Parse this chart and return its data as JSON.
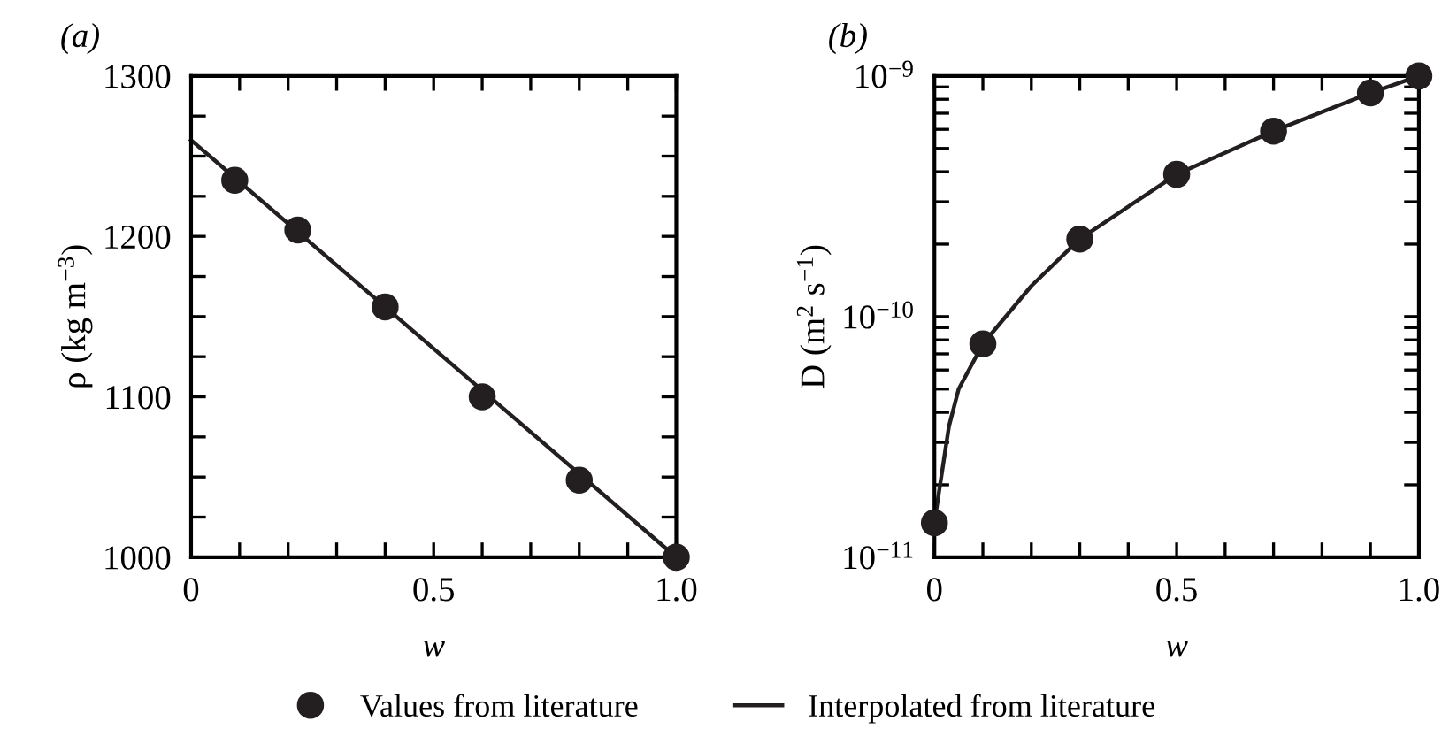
{
  "chart_data": [
    {
      "type": "scatter",
      "title": "(a)",
      "xlabel": "w",
      "ylabel": "ρ (kg m$^{−3}$)",
      "legend": "bottom",
      "xlim": [
        0,
        1.0
      ],
      "xticks": [
        0,
        {
          "value": 0.1,
          "label": null
        },
        {
          "value": 0.2,
          "label": null
        },
        {
          "value": 0.3,
          "label": null
        },
        {
          "value": 0.4,
          "label": null
        },
        0.5,
        {
          "value": 0.6,
          "label": null
        },
        {
          "value": 0.7,
          "label": null
        },
        {
          "value": 0.8,
          "label": null
        },
        {
          "value": 0.9,
          "label": null
        },
        {
          "value": 1.0,
          "label": "1.0"
        }
      ],
      "ylim": [
        1000,
        1300
      ],
      "yticks": [
        1000,
        {
          "value": 1025,
          "label": null
        },
        {
          "value": 1050,
          "label": null
        },
        {
          "value": 1075,
          "label": null
        },
        1100,
        {
          "value": 1125,
          "label": null
        },
        {
          "value": 1150,
          "label": null
        },
        {
          "value": 1175,
          "label": null
        },
        1200,
        {
          "value": 1225,
          "label": null
        },
        {
          "value": 1250,
          "label": null
        },
        {
          "value": 1275,
          "label": null
        },
        1300
      ],
      "series": [
        {
          "name": "Values from literature",
          "marker": "circle",
          "color": "#231f20",
          "x": [
            0.09,
            0.22,
            0.4,
            0.6,
            0.8,
            1.0
          ],
          "values": [
            1235,
            1204,
            1156,
            1100,
            1048,
            1000
          ]
        },
        {
          "name": "Interpolated from literature",
          "type": "line",
          "marker": "none",
          "color": "#231f20",
          "x": [
            0,
            1.0
          ],
          "values": [
            1260,
            1000
          ]
        }
      ]
    },
    {
      "type": "scatter",
      "title": "(b)",
      "xlabel": "w",
      "ylabel": "D (m$^{2}$ s$^{−1}$)",
      "log": "y",
      "xlim": [
        0,
        1.0
      ],
      "xticks": [
        0,
        {
          "value": 0.1,
          "label": null
        },
        {
          "value": 0.2,
          "label": null
        },
        {
          "value": 0.3,
          "label": null
        },
        {
          "value": 0.4,
          "label": null
        },
        0.5,
        {
          "value": 0.6,
          "label": null
        },
        {
          "value": 0.7,
          "label": null
        },
        {
          "value": 0.8,
          "label": null
        },
        {
          "value": 0.9,
          "label": null
        },
        {
          "value": 1.0,
          "label": "1.0"
        }
      ],
      "ylim": [
        1e-11,
        1e-09
      ],
      "yticks": [
        {
          "value": 1e-11,
          "label": "10$^{−11}$"
        },
        {
          "value": 2e-11,
          "label": null
        },
        {
          "value": 3e-11,
          "label": null
        },
        {
          "value": 4e-11,
          "label": null
        },
        {
          "value": 5e-11,
          "label": null
        },
        {
          "value": 6e-11,
          "label": null
        },
        {
          "value": 7e-11,
          "label": null
        },
        {
          "value": 8e-11,
          "label": null
        },
        {
          "value": 9e-11,
          "label": null
        },
        {
          "value": 1e-10,
          "label": "10$^{−10}$"
        },
        {
          "value": 2e-10,
          "label": null
        },
        {
          "value": 3e-10,
          "label": null
        },
        {
          "value": 4e-10,
          "label": null
        },
        {
          "value": 5e-10,
          "label": null
        },
        {
          "value": 6e-10,
          "label": null
        },
        {
          "value": 7e-10,
          "label": null
        },
        {
          "value": 8e-10,
          "label": null
        },
        {
          "value": 9e-10,
          "label": null
        },
        {
          "value": 1e-09,
          "label": "10$^{−9}$"
        }
      ],
      "series": [
        {
          "marker": "circle",
          "color": "#231f20",
          "x": [
            0,
            0.1,
            0.3,
            0.5,
            0.7,
            0.9,
            1.0
          ],
          "values": [
            1.39e-11,
            7.7e-11,
            2.1e-10,
            3.9e-10,
            5.9e-10,
            8.5e-10,
            1e-09
          ]
        },
        {
          "type": "line",
          "marker": "none",
          "color": "#231f20",
          "x": [
            0,
            0.01,
            0.03,
            0.05,
            0.1,
            0.2,
            0.3,
            0.5,
            0.7,
            0.9,
            1.0
          ],
          "values": [
            1.39e-11,
            1.9e-11,
            3.5e-11,
            5e-11,
            7.7e-11,
            1.34e-10,
            2.1e-10,
            3.9e-10,
            5.9e-10,
            8.5e-10,
            1e-09
          ]
        }
      ]
    }
  ]
}
